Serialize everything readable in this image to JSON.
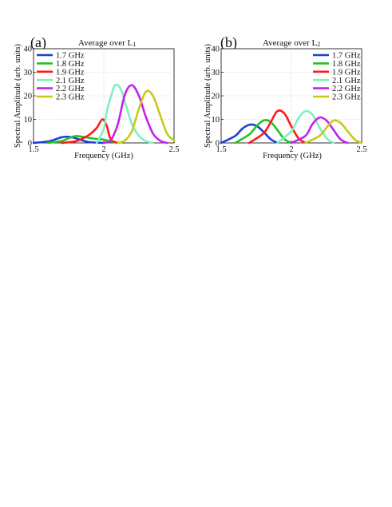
{
  "chart_data": [
    {
      "panel_label": "(a)",
      "type": "line",
      "title_main": "Average over L",
      "title_sub": "1",
      "xlabel": "Frequency (GHz)",
      "ylabel": "Spectral Amplitude (arb. units)",
      "xlim": [
        1.5,
        2.5
      ],
      "ylim": [
        0,
        40
      ],
      "xticks": [
        "1.5",
        "2",
        "2.5"
      ],
      "yticks": [
        "0",
        "10",
        "20",
        "30",
        "40"
      ],
      "grid": true,
      "legend_position": "top-left",
      "series": [
        {
          "name": "1.7 GHz",
          "color": "#1f3fd6",
          "x": [
            1.5,
            1.6,
            1.65,
            1.7,
            1.75,
            1.8,
            1.85,
            1.9,
            2.0
          ],
          "y": [
            0,
            0.6,
            1.4,
            2.4,
            2.6,
            2.0,
            1.0,
            0.3,
            0
          ]
        },
        {
          "name": "1.8 GHz",
          "color": "#22c322",
          "x": [
            1.6,
            1.7,
            1.75,
            1.8,
            1.85,
            1.9,
            1.95,
            2.0,
            2.05,
            2.1
          ],
          "y": [
            0,
            0.8,
            2.0,
            2.9,
            2.6,
            2.1,
            1.7,
            1.4,
            0.6,
            0
          ]
        },
        {
          "name": "1.9 GHz",
          "color": "#ff1a1a",
          "x": [
            1.7,
            1.8,
            1.85,
            1.9,
            1.95,
            1.99,
            2.02,
            2.05,
            2.1
          ],
          "y": [
            0,
            0.7,
            1.9,
            3.6,
            6.4,
            10.0,
            7.4,
            1.5,
            0
          ]
        },
        {
          "name": "2.1 GHz",
          "color": "#7ff0be",
          "x": [
            1.95,
            2.0,
            2.02,
            2.05,
            2.08,
            2.12,
            2.16,
            2.2,
            2.25,
            2.3,
            2.35
          ],
          "y": [
            0,
            6.0,
            13.0,
            19.5,
            24.5,
            23.0,
            15.5,
            8.0,
            3.0,
            0.8,
            0
          ]
        },
        {
          "name": "2.2 GHz",
          "color": "#c61ff0",
          "x": [
            2.0,
            2.05,
            2.1,
            2.15,
            2.2,
            2.25,
            2.3,
            2.35,
            2.4,
            2.45
          ],
          "y": [
            0,
            1.2,
            8.0,
            20.5,
            24.5,
            20.0,
            11.0,
            4.0,
            1.0,
            0
          ]
        },
        {
          "name": "2.3 GHz",
          "color": "#c8c91a",
          "x": [
            2.1,
            2.15,
            2.2,
            2.25,
            2.3,
            2.35,
            2.4,
            2.45,
            2.5
          ],
          "y": [
            0,
            1.0,
            5.0,
            14.5,
            21.8,
            20.0,
            12.0,
            4.0,
            1.0
          ]
        }
      ]
    },
    {
      "panel_label": "(b)",
      "type": "line",
      "title_main": "Average over L",
      "title_sub": "2",
      "xlabel": "Frequency (GHz)",
      "ylabel": "Spectral Amplitude (arb. units)",
      "xlim": [
        1.5,
        2.5
      ],
      "ylim": [
        0,
        40
      ],
      "xticks": [
        "1.5",
        "2",
        "2.5"
      ],
      "yticks": [
        "0",
        "10",
        "20",
        "30",
        "40"
      ],
      "grid": true,
      "legend_position": "top-right",
      "series": [
        {
          "name": "1.7 GHz",
          "color": "#1f3fd6",
          "x": [
            1.5,
            1.6,
            1.65,
            1.7,
            1.75,
            1.8,
            1.85,
            1.9
          ],
          "y": [
            0,
            3.0,
            6.0,
            7.7,
            7.3,
            4.8,
            1.7,
            0
          ]
        },
        {
          "name": "1.8 GHz",
          "color": "#22c322",
          "x": [
            1.6,
            1.7,
            1.75,
            1.8,
            1.85,
            1.9,
            1.95,
            2.0
          ],
          "y": [
            0,
            3.6,
            7.0,
            9.5,
            9.0,
            5.5,
            1.6,
            0
          ]
        },
        {
          "name": "1.9 GHz",
          "color": "#ff1a1a",
          "x": [
            1.7,
            1.8,
            1.85,
            1.9,
            1.95,
            2.0,
            2.05,
            2.1
          ],
          "y": [
            0,
            4.0,
            8.5,
            13.5,
            12.5,
            7.0,
            2.0,
            0
          ]
        },
        {
          "name": "2.1 GHz",
          "color": "#7ff0be",
          "x": [
            1.9,
            2.0,
            2.05,
            2.1,
            2.15,
            2.2,
            2.25,
            2.3
          ],
          "y": [
            0,
            5.0,
            10.5,
            13.5,
            12.0,
            6.5,
            2.0,
            0
          ]
        },
        {
          "name": "2.2 GHz",
          "color": "#c61ff0",
          "x": [
            2.0,
            2.1,
            2.15,
            2.2,
            2.25,
            2.3,
            2.35,
            2.4
          ],
          "y": [
            0,
            3.0,
            8.0,
            10.8,
            9.5,
            5.5,
            1.5,
            0
          ]
        },
        {
          "name": "2.3 GHz",
          "color": "#c8c91a",
          "x": [
            2.1,
            2.2,
            2.25,
            2.3,
            2.35,
            2.4,
            2.45,
            2.5
          ],
          "y": [
            0,
            3.0,
            6.5,
            9.5,
            8.5,
            5.0,
            1.5,
            0
          ]
        }
      ]
    }
  ]
}
